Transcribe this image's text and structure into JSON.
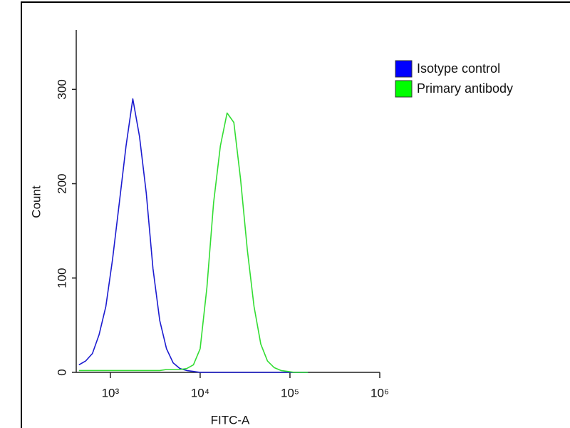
{
  "chart_data": {
    "type": "line",
    "x_label": "FITC-A",
    "y_label": "Count",
    "xlog": true,
    "x": [
      447,
      531,
      631,
      750,
      891,
      1059,
      1259,
      1496,
      1778,
      2113,
      2512,
      2985,
      3548,
      4217,
      5012,
      5957,
      7079,
      8414,
      10000,
      11885,
      14125,
      16788,
      19953,
      23714,
      28184,
      33497,
      39811,
      47315,
      56234,
      66834,
      79433,
      94406,
      112202,
      133352,
      158489
    ],
    "series": [
      {
        "name": "Isotype control",
        "color": "#1c1cd0",
        "legend_color": "#0000ff",
        "values": [
          8,
          12,
          20,
          40,
          70,
          120,
          180,
          240,
          290,
          250,
          190,
          110,
          55,
          25,
          10,
          4,
          2,
          1,
          0,
          0,
          0,
          0,
          0,
          0,
          0,
          0,
          0,
          0,
          0,
          0,
          0,
          0,
          0,
          0,
          0
        ]
      },
      {
        "name": "Primary antibody",
        "color": "#33dd33",
        "legend_color": "#00ff00",
        "values": [
          2,
          2,
          2,
          2,
          2,
          2,
          2,
          2,
          2,
          2,
          2,
          2,
          2,
          3,
          3,
          3,
          4,
          8,
          25,
          90,
          180,
          240,
          275,
          265,
          205,
          130,
          70,
          30,
          12,
          5,
          2,
          1,
          0,
          0,
          0
        ]
      }
    ],
    "xlim": [
      417,
      1000000
    ],
    "ylim": [
      0,
      363
    ],
    "xticks": [
      {
        "value": 1000,
        "label": "10³"
      },
      {
        "value": 10000,
        "label": "10⁴"
      },
      {
        "value": 100000,
        "label": "10⁵"
      },
      {
        "value": 1000000,
        "label": "10⁶"
      }
    ],
    "yticks": [
      0,
      100,
      200,
      300
    ],
    "legend": "right"
  }
}
